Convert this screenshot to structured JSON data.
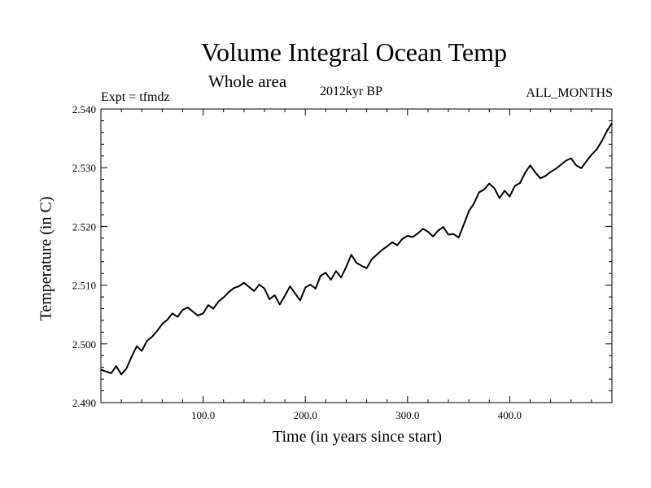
{
  "chart_data": {
    "type": "line",
    "title": "Volume Integral Ocean Temp",
    "subtitle": "Whole area",
    "expt_label": "Expt = tfmdz",
    "period_label": "2012kyr BP",
    "months_label": "ALL_MONTHS",
    "xlabel": "Time (in years since start)",
    "ylabel": "Temperature (in C)",
    "xlim": [
      0,
      500
    ],
    "ylim": [
      2.49,
      2.54
    ],
    "xticks": [
      100,
      200,
      300,
      400
    ],
    "xtick_labels": [
      "100.0",
      "200.0",
      "300.0",
      "400.0"
    ],
    "yticks": [
      2.49,
      2.5,
      2.51,
      2.52,
      2.53,
      2.54
    ],
    "ytick_labels": [
      "2.490",
      "2.500",
      "2.510",
      "2.520",
      "2.530",
      "2.540"
    ],
    "series": [
      {
        "name": "Volume Integral Ocean Temp",
        "x": [
          0,
          5,
          10,
          15,
          20,
          25,
          30,
          35,
          40,
          45,
          50,
          55,
          60,
          65,
          70,
          75,
          80,
          85,
          90,
          95,
          100,
          105,
          110,
          115,
          120,
          125,
          130,
          135,
          140,
          145,
          150,
          155,
          160,
          165,
          170,
          175,
          180,
          185,
          190,
          195,
          200,
          205,
          210,
          215,
          220,
          225,
          230,
          235,
          240,
          245,
          250,
          255,
          260,
          265,
          270,
          275,
          280,
          285,
          290,
          295,
          300,
          305,
          310,
          315,
          320,
          325,
          330,
          335,
          340,
          345,
          350,
          355,
          360,
          365,
          370,
          375,
          380,
          385,
          390,
          395,
          400,
          405,
          410,
          415,
          420,
          425,
          430,
          435,
          440,
          445,
          450,
          455,
          460,
          465,
          470,
          475,
          480,
          485,
          490,
          495,
          500
        ],
        "values": [
          2.4956,
          2.4953,
          2.495,
          2.4962,
          2.4948,
          2.4958,
          2.4978,
          2.4996,
          2.4988,
          2.5005,
          2.5012,
          2.5022,
          2.5034,
          2.5041,
          2.5052,
          2.5046,
          2.5058,
          2.5062,
          2.5055,
          2.5048,
          2.5052,
          2.5066,
          2.506,
          2.5072,
          2.5079,
          2.5088,
          2.5095,
          2.5098,
          2.5104,
          2.5097,
          2.509,
          2.5101,
          2.5094,
          2.5076,
          2.5083,
          2.5067,
          2.5082,
          2.5098,
          2.5086,
          2.5074,
          2.5096,
          2.5101,
          2.5094,
          2.5116,
          2.5121,
          2.5109,
          2.5124,
          2.5113,
          2.5131,
          2.5152,
          2.5138,
          2.5133,
          2.5129,
          2.5144,
          2.5152,
          2.516,
          2.5166,
          2.5173,
          2.5168,
          2.5179,
          2.5184,
          2.5182,
          2.5188,
          2.5196,
          2.5191,
          2.5183,
          2.5193,
          2.5199,
          2.5186,
          2.5187,
          2.5181,
          2.5203,
          2.5226,
          2.5239,
          2.5258,
          2.5263,
          2.5273,
          2.5265,
          2.5248,
          2.5261,
          2.5251,
          2.5269,
          2.5274,
          2.5291,
          2.5304,
          2.5292,
          2.5282,
          2.5286,
          2.5293,
          2.5298,
          2.5305,
          2.5312,
          2.5316,
          2.5304,
          2.5299,
          2.5311,
          2.5322,
          2.5331,
          2.5345,
          2.5362,
          2.5376
        ]
      }
    ]
  }
}
